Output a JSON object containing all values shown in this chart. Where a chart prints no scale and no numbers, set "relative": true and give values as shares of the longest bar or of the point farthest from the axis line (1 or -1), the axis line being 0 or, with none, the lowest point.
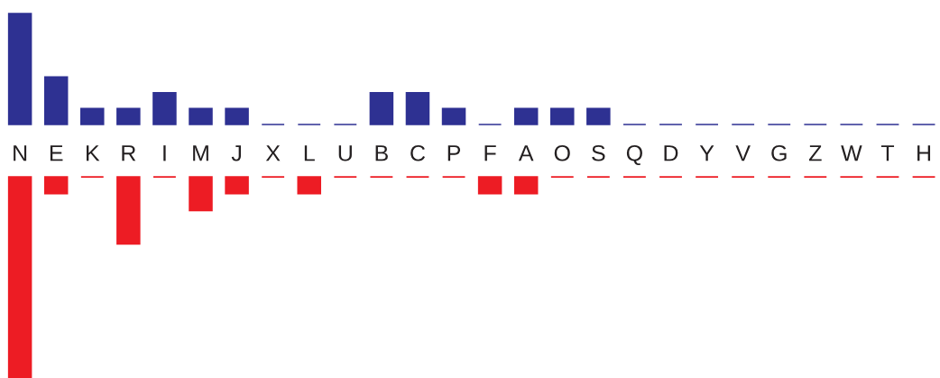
{
  "chart_data": [
    {
      "type": "bar",
      "relative": true,
      "tick_labels": "x",
      "categories": [
        "N",
        "E",
        "K",
        "R",
        "I",
        "M",
        "J",
        "X",
        "L",
        "U",
        "B",
        "C",
        "P",
        "F",
        "A",
        "O",
        "S",
        "Q",
        "D",
        "Y",
        "V",
        "G",
        "Z",
        "W",
        "T",
        "H"
      ],
      "series": [
        {
          "color": "#2e3192",
          "values": [
            1,
            0.429,
            0.143,
            0.143,
            0.286,
            0.143,
            0.143,
            0,
            0,
            0,
            0.286,
            0.286,
            0.143,
            0,
            0.143,
            0.143,
            0.143,
            0,
            0,
            0,
            0,
            0,
            0,
            0,
            0,
            0
          ]
        }
      ]
    },
    {
      "type": "bar",
      "relative": true,
      "tick_labels": false,
      "categories": [
        null,
        null,
        null,
        null,
        null,
        null,
        null,
        null,
        null,
        null,
        null,
        null,
        null,
        null,
        null,
        null,
        null,
        null,
        null,
        null,
        null,
        null,
        null,
        null,
        null,
        null
      ],
      "series": [
        {
          "color": "#ed1c24",
          "values": [
            -1,
            -0.083,
            0,
            -0.333,
            0,
            -0.167,
            -0.083,
            0,
            -0.083,
            0,
            0,
            0,
            0,
            -0.083,
            -0.083,
            0,
            0,
            0,
            0,
            0,
            0,
            0,
            0,
            0,
            0,
            0
          ]
        }
      ]
    }
  ]
}
